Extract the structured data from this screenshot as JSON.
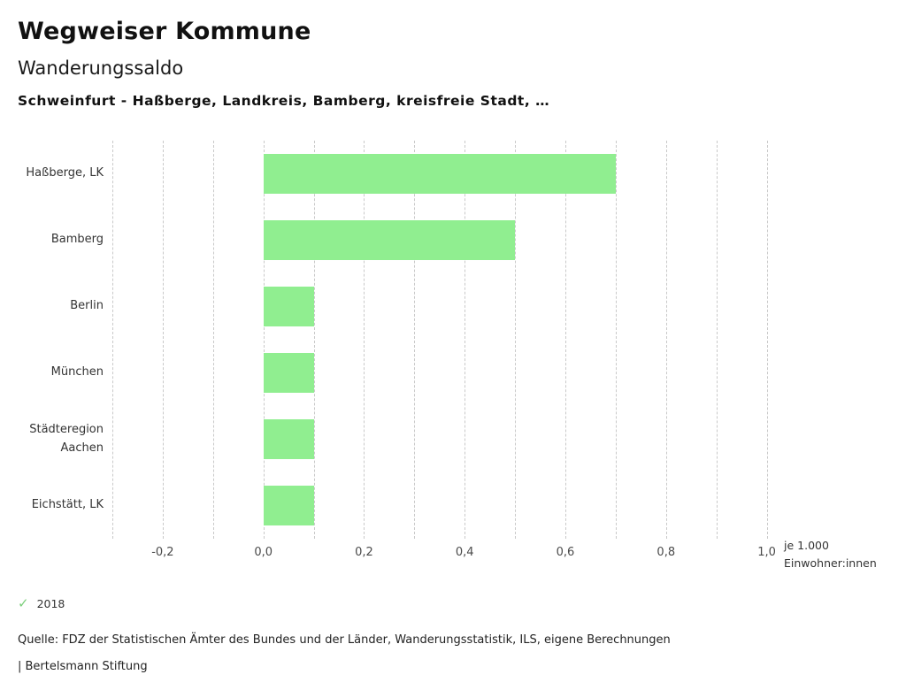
{
  "header": {
    "app_title": "Wegweiser Kommune",
    "indicator_title": "Wanderungssaldo",
    "regions_subtitle": "Schweinfurt - Haßberge, Landkreis, Bamberg, kreisfreie Stadt, …"
  },
  "chart_data": {
    "type": "bar",
    "orientation": "horizontal",
    "title": "Wanderungssaldo",
    "subtitle": "Schweinfurt - Haßberge, Landkreis, Bamberg, kreisfreie Stadt, …",
    "categories": [
      "Haßberge, LK",
      "Bamberg",
      "Berlin",
      "München",
      "Städteregion Aachen",
      "Eichstätt, LK"
    ],
    "values": [
      0.7,
      0.5,
      0.1,
      0.1,
      0.1,
      0.1
    ],
    "series_name": "2018",
    "xlim": [
      -0.3,
      1.05
    ],
    "ticks": [
      {
        "v": -0.2,
        "label": "-0,2"
      },
      {
        "v": 0.0,
        "label": "0,0"
      },
      {
        "v": 0.2,
        "label": "0,2"
      },
      {
        "v": 0.4,
        "label": "0,4"
      },
      {
        "v": 0.6,
        "label": "0,6"
      },
      {
        "v": 0.8,
        "label": "0,8"
      },
      {
        "v": 1.0,
        "label": "1,0"
      }
    ],
    "gridlines": [
      -0.3,
      -0.2,
      -0.1,
      0.0,
      0.1,
      0.2,
      0.3,
      0.4,
      0.5,
      0.6,
      0.7,
      0.8,
      0.9,
      1.0
    ],
    "unit_label_lines": [
      "je 1.000",
      "Einwohner:innen"
    ],
    "bar_color": "#90ee90",
    "grid": true,
    "legend_position": "bottom-left"
  },
  "legend": {
    "check_icon": "✓",
    "label": "2018",
    "check_color": "#7ccf7c"
  },
  "footer": {
    "source": "Quelle: FDZ der Statistischen Ämter des Bundes und der Länder, Wanderungsstatistik, ILS, eigene Berechnungen",
    "brand": "| Bertelsmann Stiftung"
  }
}
